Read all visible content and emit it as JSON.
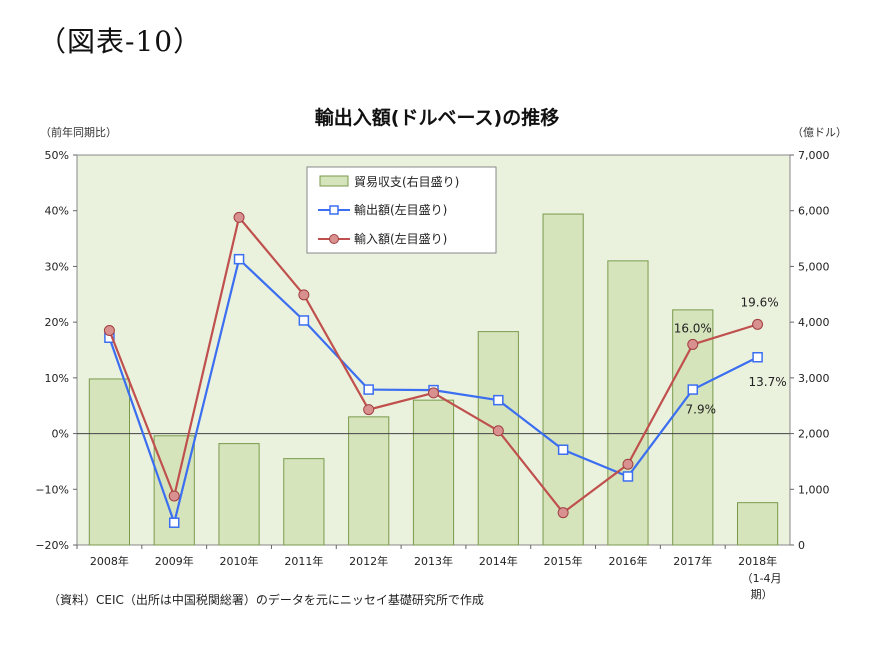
{
  "figure_label": "（図表-10）",
  "caption": "（資料）CEIC（出所は中国税関総署）のデータを元にニッセイ基礎研究所で作成",
  "chart_data": {
    "type": "bar+line",
    "title": "輸出入額(ドルベース)の推移",
    "left_axis_label": "（前年同期比）",
    "right_axis_label": "（億ドル）",
    "categories": [
      "2008年",
      "2009年",
      "2010年",
      "2011年",
      "2012年",
      "2013年",
      "2014年",
      "2015年",
      "2016年",
      "2017年",
      "2018年"
    ],
    "last_category_note": [
      "（1-4月",
      "期）"
    ],
    "left_ylim": [
      -20,
      50
    ],
    "left_ticks": [
      "50%",
      "40%",
      "30%",
      "20%",
      "10%",
      "0%",
      "−10%",
      "−20%"
    ],
    "right_ylim": [
      0,
      7000
    ],
    "right_ticks": [
      "7,000",
      "6,000",
      "5,000",
      "4,000",
      "3,000",
      "2,000",
      "1,000",
      "0"
    ],
    "bars": {
      "name": "貿易収支(右目盛り)",
      "axis": "right",
      "values": [
        2980,
        1960,
        1820,
        1550,
        2300,
        2600,
        3830,
        5940,
        5100,
        4220,
        760
      ]
    },
    "series": [
      {
        "name": "輸出額(左目盛り)",
        "axis": "left",
        "color": "#3b6ef0",
        "marker": "square",
        "values": [
          17.2,
          -16.0,
          31.3,
          20.3,
          7.9,
          7.8,
          6.0,
          -2.9,
          -7.7,
          7.9,
          13.7
        ]
      },
      {
        "name": "輸入額(左目盛り)",
        "axis": "left",
        "color": "#c0504d",
        "marker": "circle",
        "values": [
          18.5,
          -11.2,
          38.8,
          24.9,
          4.3,
          7.3,
          0.5,
          -14.2,
          -5.5,
          16.0,
          19.6
        ]
      }
    ],
    "annotations": [
      "19.6%",
      "16.0%",
      "13.7%",
      "7.9%"
    ],
    "legend_position": "top-left",
    "colors": {
      "plot_bg": "#eaf1dd",
      "bar_fill": "#d6e4bc",
      "bar_stroke": "#7a9a4c",
      "export": "#3b6ef0",
      "import": "#c0504d"
    }
  }
}
